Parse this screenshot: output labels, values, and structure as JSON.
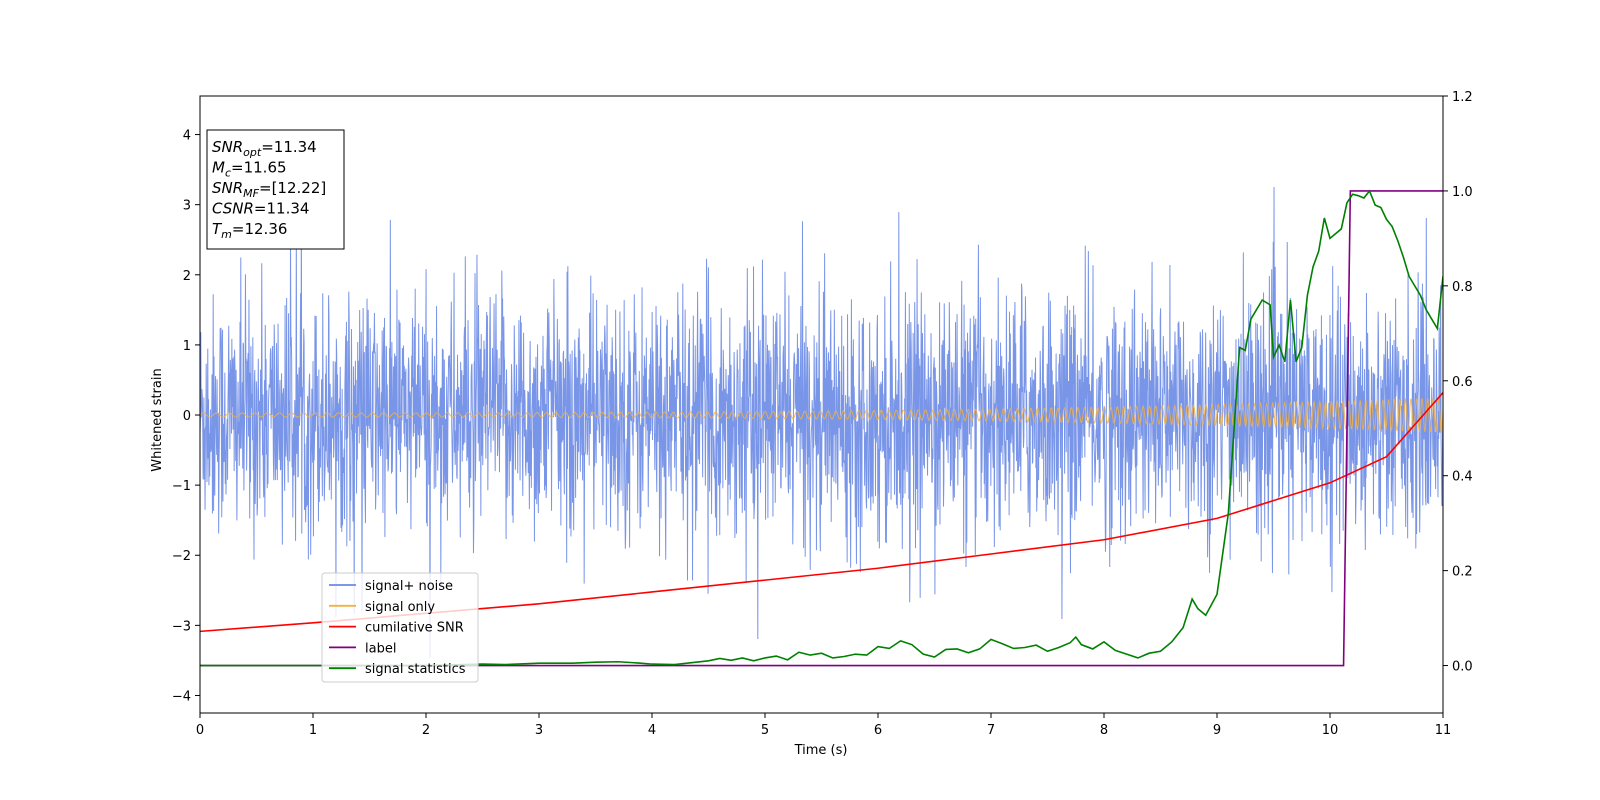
{
  "chart_data": {
    "type": "line",
    "xlabel": "Time (s)",
    "ylabel": "Whitened strain",
    "xlim": [
      0,
      11
    ],
    "ylim": [
      -4.25,
      4.55
    ],
    "y2lim": [
      -0.1,
      1.2
    ],
    "xticks": [
      "0",
      "1",
      "2",
      "3",
      "4",
      "5",
      "6",
      "7",
      "8",
      "9",
      "10",
      "11"
    ],
    "yticks": [
      "4",
      "3",
      "2",
      "1",
      "0",
      "−1",
      "−2",
      "−3",
      "−4"
    ],
    "y2ticks": [
      "0.0",
      "0.2",
      "0.4",
      "0.6",
      "0.8",
      "1.0",
      "1.2"
    ],
    "legend_position": "lower-left",
    "annotation": {
      "lines": [
        {
          "sym": "SNR",
          "sub": "opt",
          "value": "=11.34"
        },
        {
          "sym": "M",
          "sub": "c",
          "value": "=11.65"
        },
        {
          "sym": "SNR",
          "sub": "MF",
          "value": "=[12.22]"
        },
        {
          "sym": "CSNR",
          "sub": "",
          "value": "=11.34"
        },
        {
          "sym": "T",
          "sub": "m",
          "value": "=12.36"
        }
      ]
    },
    "series": [
      {
        "name": "signal+ noise",
        "color": "#6a8ae6",
        "axis": "left",
        "note": "whitened noisy strain, amplitude roughly ±2.5 with spikes to about ±4"
      },
      {
        "name": "signal only",
        "color": "#f5b041",
        "axis": "left",
        "note": "chirp oscillation, amplitude growing from about 0.03 at t=0 to 0.25 at t=11"
      },
      {
        "name": "cumilative SNR",
        "color": "#ff0000",
        "axis": "right",
        "x": [
          0,
          1,
          2,
          3,
          4,
          5,
          6,
          7,
          8,
          9,
          10,
          10.5,
          11
        ],
        "values": [
          0.072,
          0.09,
          0.11,
          0.13,
          0.155,
          0.18,
          0.205,
          0.235,
          0.265,
          0.31,
          0.385,
          0.44,
          0.575
        ]
      },
      {
        "name": "label",
        "color": "#800080",
        "axis": "right",
        "x": [
          0,
          10.12,
          10.18,
          11
        ],
        "values": [
          0,
          0,
          1,
          1
        ]
      },
      {
        "name": "signal statistics",
        "color": "#008000",
        "axis": "right",
        "x": [
          0,
          0.5,
          1,
          1.5,
          2,
          2.5,
          2.7,
          3,
          3.3,
          3.5,
          3.7,
          3.9,
          4,
          4.2,
          4.5,
          4.6,
          4.7,
          4.8,
          4.9,
          5.0,
          5.1,
          5.2,
          5.3,
          5.4,
          5.5,
          5.6,
          5.7,
          5.8,
          5.9,
          6.0,
          6.1,
          6.2,
          6.3,
          6.4,
          6.5,
          6.6,
          6.7,
          6.8,
          6.9,
          7.0,
          7.1,
          7.2,
          7.3,
          7.4,
          7.5,
          7.6,
          7.7,
          7.75,
          7.8,
          7.9,
          8.0,
          8.1,
          8.2,
          8.3,
          8.4,
          8.5,
          8.6,
          8.7,
          8.78,
          8.83,
          8.9,
          9.0,
          9.1,
          9.2,
          9.25,
          9.3,
          9.4,
          9.47,
          9.5,
          9.55,
          9.6,
          9.65,
          9.7,
          9.75,
          9.8,
          9.85,
          9.9,
          9.95,
          10.0,
          10.05,
          10.1,
          10.15,
          10.2,
          10.25,
          10.3,
          10.35,
          10.4,
          10.45,
          10.5,
          10.55,
          10.6,
          10.65,
          10.7,
          10.75,
          10.8,
          10.85,
          10.9,
          10.95,
          11.0
        ],
        "values": [
          0,
          0,
          0,
          0,
          0,
          0.003,
          0.002,
          0.005,
          0.005,
          0.007,
          0.008,
          0.005,
          0.003,
          0.002,
          0.01,
          0.015,
          0.011,
          0.016,
          0.01,
          0.016,
          0.02,
          0.012,
          0.028,
          0.022,
          0.026,
          0.016,
          0.019,
          0.024,
          0.022,
          0.04,
          0.036,
          0.052,
          0.044,
          0.024,
          0.018,
          0.034,
          0.035,
          0.027,
          0.035,
          0.055,
          0.046,
          0.036,
          0.038,
          0.043,
          0.03,
          0.038,
          0.048,
          0.06,
          0.044,
          0.035,
          0.05,
          0.032,
          0.024,
          0.016,
          0.026,
          0.03,
          0.05,
          0.08,
          0.14,
          0.12,
          0.106,
          0.15,
          0.32,
          0.67,
          0.664,
          0.73,
          0.77,
          0.76,
          0.65,
          0.675,
          0.64,
          0.77,
          0.64,
          0.67,
          0.78,
          0.84,
          0.873,
          0.943,
          0.9,
          0.91,
          0.92,
          0.975,
          0.993,
          0.99,
          0.985,
          1.0,
          0.97,
          0.965,
          0.94,
          0.925,
          0.895,
          0.86,
          0.82,
          0.8,
          0.78,
          0.75,
          0.73,
          0.71,
          0.82
        ]
      }
    ]
  }
}
